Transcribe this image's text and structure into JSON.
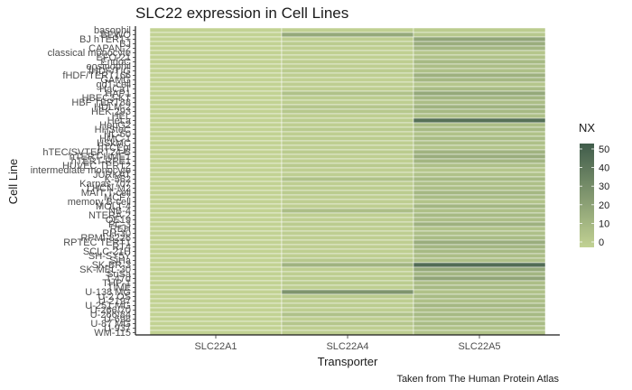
{
  "chart_data": {
    "type": "heatmap",
    "title": "SLC22 expression in Cell Lines",
    "xlabel": "Transporter",
    "ylabel": "Cell Line",
    "caption": "Taken from The Human Protein Atlas",
    "x_categories": [
      "SLC22A1",
      "SLC22A4",
      "SLC22A5"
    ],
    "y_categories": [
      "basophil",
      "BEWO",
      "BJ hTERT+",
      "BJ",
      "CAPAN-2",
      "classical monocyte",
      "EFO-21",
      "EndoC",
      "eosinophil",
      "fHDF/TIG",
      "fHDF/TERT166",
      "GAMG",
      "gdT-cell",
      "HaCaT",
      "HAP1",
      "HBEC3-KT",
      "HBF TERT88",
      "HDLM-2",
      "HEK 293",
      "HEL",
      "HeLa",
      "HepG2",
      "HHSteC",
      "HL-60",
      "HMC-1",
      "HSkMC",
      "hTCEpi",
      "hTEC/SVTERT24-B",
      "hTERT-HME1",
      "hTERT-RPE1",
      "HUVEC TERT2",
      "intermediate monocyte",
      "JURKAT",
      "K-562",
      "Karpas-707",
      "LHCN-M2",
      "MAIT T-cell",
      "MCF7",
      "memory B-cell",
      "MOLT-4",
      "NB-4",
      "NTERA-2",
      "OE19",
      "PC-3",
      "REH",
      "RH-30",
      "RPMI-8226",
      "RPTEC TERT1",
      "RT4",
      "SCLC-21H",
      "SH-SY5Y",
      "SiHa",
      "SK-BR-3",
      "SK-MEL-30",
      "SuSa",
      "T-47d",
      "THP-1",
      "TIME",
      "U-138 MG",
      "U-2 OS",
      "U-2197",
      "U-251 MG",
      "U-266/70",
      "U-266/84",
      "U-698",
      "U-87 MG",
      "U-937",
      "WM-115"
    ],
    "values": {
      "SLC22A1": [
        0,
        0,
        0,
        0,
        0,
        0,
        0,
        0,
        0,
        0,
        0,
        0,
        0,
        0,
        0,
        0,
        0,
        0,
        0,
        0,
        0,
        0,
        0,
        0,
        0,
        0,
        0,
        0,
        0,
        0,
        0,
        0,
        0,
        0,
        0,
        0,
        0,
        0,
        0,
        0,
        0,
        0,
        0,
        0,
        0,
        0,
        0,
        0,
        0,
        0,
        0,
        0,
        0,
        0,
        0,
        0,
        0,
        0,
        0,
        0,
        0,
        0,
        0,
        0,
        0,
        0,
        0,
        0
      ],
      "SLC22A4": [
        1,
        20,
        2,
        3,
        2,
        1,
        1,
        2,
        2,
        3,
        2,
        1,
        2,
        2,
        8,
        3,
        2,
        6,
        5,
        2,
        3,
        2,
        4,
        2,
        3,
        2,
        2,
        3,
        2,
        2,
        4,
        2,
        2,
        8,
        2,
        3,
        3,
        2,
        2,
        2,
        10,
        2,
        2,
        3,
        2,
        2,
        2,
        2,
        2,
        2,
        2,
        5,
        15,
        2,
        2,
        3,
        3,
        2,
        30,
        4,
        2,
        3,
        2,
        8,
        2,
        6,
        2,
        2
      ],
      "SLC22A5": [
        3,
        5,
        22,
        18,
        14,
        6,
        8,
        12,
        10,
        9,
        16,
        13,
        6,
        11,
        20,
        14,
        10,
        15,
        12,
        9,
        48,
        10,
        12,
        8,
        11,
        9,
        7,
        15,
        18,
        14,
        9,
        6,
        8,
        12,
        9,
        10,
        13,
        11,
        7,
        14,
        9,
        12,
        10,
        16,
        8,
        9,
        11,
        18,
        14,
        12,
        10,
        9,
        50,
        20,
        14,
        22,
        10,
        12,
        8,
        11,
        9,
        13,
        10,
        12,
        9,
        11,
        8,
        7
      ]
    },
    "legend": {
      "title": "NX",
      "ticks": [
        0,
        10,
        20,
        30,
        40,
        50
      ],
      "range": [
        0,
        58
      ],
      "color_low": "#c2d293",
      "color_high": "#405c4b",
      "placement": "right"
    },
    "grid": false
  }
}
